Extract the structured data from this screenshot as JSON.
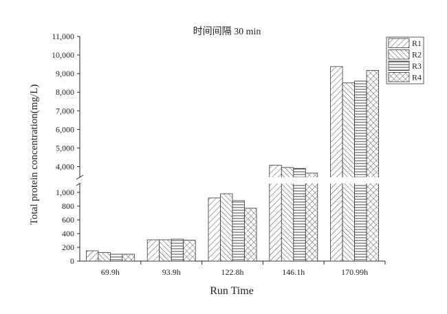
{
  "chart_data": {
    "type": "bar",
    "title": "时间间隔 30 min",
    "xlabel": "Run Time",
    "ylabel": "Total protein concentration(mg/L)",
    "categories": [
      "69.9h",
      "93.9h",
      "122.8h",
      "146.1h",
      "170.99h"
    ],
    "series": [
      {
        "name": "R1",
        "pattern": "diag-right",
        "values": [
          150,
          310,
          920,
          4080,
          9380
        ]
      },
      {
        "name": "R2",
        "pattern": "diag-left",
        "values": [
          125,
          310,
          980,
          3950,
          8500
        ]
      },
      {
        "name": "R3",
        "pattern": "horizontal",
        "values": [
          100,
          320,
          880,
          3900,
          8600
        ]
      },
      {
        "name": "R4",
        "pattern": "crosshatch",
        "values": [
          100,
          305,
          770,
          3650,
          9170
        ]
      }
    ],
    "y_axis_break": {
      "lower_range": [
        0,
        1100
      ],
      "upper_range": [
        3500,
        11000
      ]
    },
    "yticks_lower": [
      0,
      200,
      400,
      600,
      800,
      1000
    ],
    "yticks_lower_labels": [
      "0",
      "200",
      "400",
      "600",
      "800",
      "1,000"
    ],
    "yticks_upper": [
      4000,
      5000,
      6000,
      7000,
      8000,
      9000,
      10000,
      11000
    ],
    "yticks_upper_labels": [
      "4,000",
      "5,000",
      "6,000",
      "7,000",
      "8,000",
      "9,000",
      "10,000",
      "11,000"
    ],
    "legend_position": "top-right",
    "grid": false
  }
}
